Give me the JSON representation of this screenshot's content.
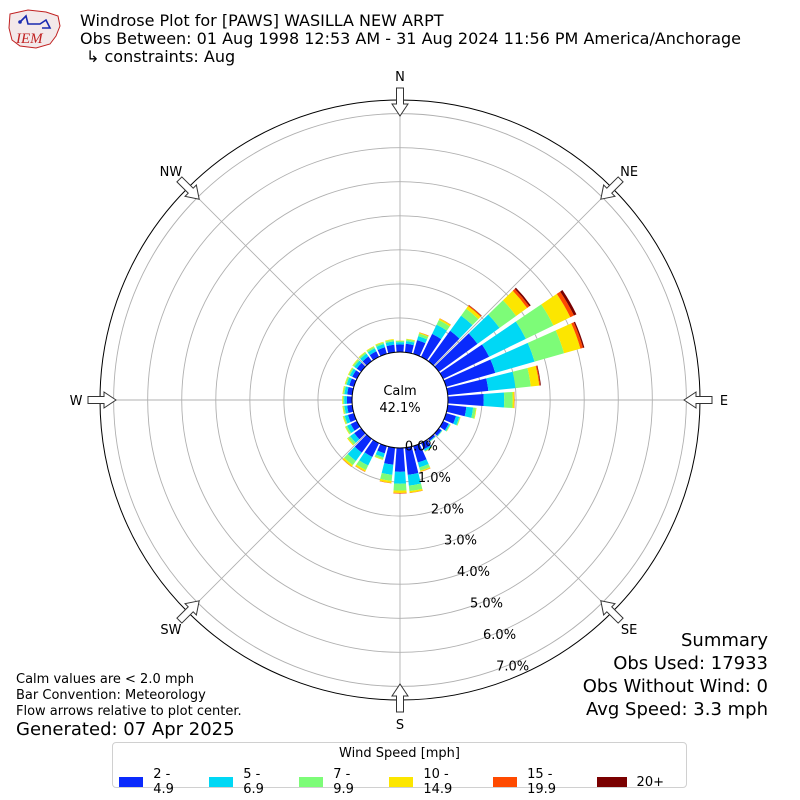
{
  "header": {
    "title": "Windrose Plot for [PAWS] WASILLA NEW ARPT",
    "period": "Obs Between: 01 Aug 1998 12:53 AM - 31 Aug 2024 11:56 PM America/Anchorage",
    "constraints": "↳ constraints: Aug",
    "logo_text": "IEM"
  },
  "summary": {
    "heading": "Summary",
    "obs_used": "Obs Used: 17933",
    "obs_without_wind": "Obs Without Wind: 0",
    "avg_speed": "Avg Speed: 3.3 mph"
  },
  "notes": {
    "calm": "Calm values are < 2.0 mph",
    "convention": "Bar Convention: Meteorology",
    "arrows": "Flow arrows relative to plot center.",
    "generated": "Generated: 07 Apr 2025"
  },
  "colors": {
    "bins": [
      "#0a2afc",
      "#00d8f5",
      "#7dfc78",
      "#fce600",
      "#ff4a00",
      "#7a0000"
    ],
    "grid": "#b0b0b0"
  },
  "chart_data": {
    "type": "windrose",
    "calm_label": "Calm",
    "calm_value_label": "42.1%",
    "calm_percent": 42.1,
    "radial_ticks": [
      "0.0%",
      "1.0%",
      "2.0%",
      "3.0%",
      "4.0%",
      "5.0%",
      "6.0%",
      "7.0%"
    ],
    "rmax": 7.4,
    "legend": {
      "title": "Wind Speed [mph]",
      "labels": [
        "2 - 4.9",
        "5 - 6.9",
        "7 - 9.9",
        "10 - 14.9",
        "15 - 19.9",
        "20+"
      ]
    },
    "compass_labels": [
      "N",
      "NE",
      "E",
      "SE",
      "S",
      "SW",
      "W",
      "NW"
    ],
    "directions_deg": [
      0,
      10,
      20,
      30,
      40,
      50,
      60,
      70,
      80,
      90,
      100,
      110,
      120,
      130,
      140,
      150,
      160,
      170,
      180,
      190,
      200,
      210,
      220,
      230,
      240,
      250,
      260,
      270,
      280,
      290,
      300,
      310,
      320,
      330,
      340,
      350
    ],
    "bins": [
      {
        "name": "2 - 4.9",
        "values": [
          0.22,
          0.25,
          0.42,
          0.75,
          1.1,
          1.4,
          1.5,
          1.5,
          1.2,
          1.05,
          0.55,
          0.3,
          0.18,
          0.1,
          0.07,
          0.2,
          0.5,
          0.8,
          0.7,
          0.5,
          0.22,
          0.45,
          0.5,
          0.25,
          0.2,
          0.18,
          0.15,
          0.15,
          0.15,
          0.14,
          0.15,
          0.16,
          0.17,
          0.18,
          0.2,
          0.22
        ]
      },
      {
        "name": "5 - 6.9",
        "values": [
          0.07,
          0.08,
          0.12,
          0.3,
          0.55,
          0.8,
          1.2,
          1.2,
          0.8,
          0.6,
          0.2,
          0.1,
          0.04,
          0.02,
          0.02,
          0.05,
          0.15,
          0.32,
          0.35,
          0.3,
          0.12,
          0.28,
          0.3,
          0.15,
          0.12,
          0.1,
          0.08,
          0.08,
          0.08,
          0.08,
          0.08,
          0.09,
          0.1,
          0.1,
          0.1,
          0.1
        ]
      },
      {
        "name": "7 - 9.9",
        "values": [
          0.04,
          0.05,
          0.08,
          0.15,
          0.25,
          0.6,
          0.9,
          0.9,
          0.45,
          0.25,
          0.08,
          0.03,
          0.02,
          0.01,
          0.01,
          0.02,
          0.1,
          0.16,
          0.2,
          0.18,
          0.06,
          0.15,
          0.15,
          0.08,
          0.05,
          0.04,
          0.04,
          0.04,
          0.04,
          0.04,
          0.04,
          0.05,
          0.05,
          0.05,
          0.05,
          0.05
        ]
      },
      {
        "name": "10 - 14.9",
        "values": [
          0.01,
          0.02,
          0.03,
          0.05,
          0.1,
          0.4,
          0.55,
          0.5,
          0.25,
          0.05,
          0.02,
          0.01,
          0.01,
          0.0,
          0.0,
          0.01,
          0.03,
          0.05,
          0.07,
          0.06,
          0.02,
          0.05,
          0.06,
          0.03,
          0.02,
          0.02,
          0.02,
          0.02,
          0.02,
          0.02,
          0.02,
          0.02,
          0.02,
          0.02,
          0.02,
          0.02
        ]
      },
      {
        "name": "15 - 19.9",
        "values": [
          0.0,
          0.0,
          0.01,
          0.01,
          0.03,
          0.08,
          0.12,
          0.08,
          0.03,
          0.01,
          0.0,
          0.0,
          0.0,
          0.0,
          0.0,
          0.0,
          0.01,
          0.01,
          0.02,
          0.01,
          0.0,
          0.01,
          0.01,
          0.0,
          0.0,
          0.0,
          0.0,
          0.0,
          0.0,
          0.0,
          0.0,
          0.0,
          0.0,
          0.0,
          0.0,
          0.0
        ]
      },
      {
        "name": "20+",
        "values": [
          0.0,
          0.0,
          0.0,
          0.0,
          0.01,
          0.05,
          0.08,
          0.04,
          0.02,
          0.0,
          0.0,
          0.0,
          0.0,
          0.0,
          0.0,
          0.0,
          0.0,
          0.0,
          0.0,
          0.0,
          0.0,
          0.0,
          0.0,
          0.0,
          0.0,
          0.0,
          0.0,
          0.0,
          0.0,
          0.0,
          0.0,
          0.0,
          0.0,
          0.0,
          0.0,
          0.0
        ]
      }
    ]
  }
}
